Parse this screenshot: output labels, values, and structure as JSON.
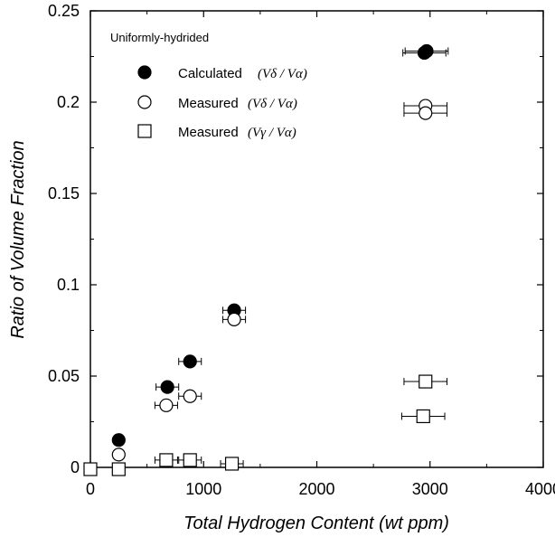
{
  "chart_data": {
    "type": "scatter",
    "title": "",
    "xlabel": "Total Hydrogen Content (wt ppm)",
    "ylabel": "Ratio of Volume Fraction",
    "xlim": [
      0,
      4000
    ],
    "ylim": [
      0,
      0.25
    ],
    "x_ticks": [
      "0",
      "1000",
      "2000",
      "3000",
      "4000"
    ],
    "y_ticks": [
      "0",
      "0.05",
      "0.1",
      "0.15",
      "0.2",
      "0.25"
    ],
    "annotation": "Uniformly-hydrided",
    "legend_position": "top-left",
    "grid": false,
    "series": [
      {
        "name": "Calculated",
        "name_math": "(Vδ / Vα)",
        "marker": "filled-circle",
        "points": [
          {
            "x": 250,
            "y": 0.015
          },
          {
            "x": 680,
            "y": 0.044
          },
          {
            "x": 880,
            "y": 0.058
          },
          {
            "x": 1270,
            "y": 0.086
          },
          {
            "x": 2950,
            "y": 0.227
          },
          {
            "x": 2970,
            "y": 0.228
          }
        ],
        "xerr": [
          0,
          100,
          100,
          100,
          190,
          190
        ]
      },
      {
        "name": "Measured",
        "name_math": "(Vδ / Vα)",
        "marker": "open-circle",
        "points": [
          {
            "x": 250,
            "y": 0.007
          },
          {
            "x": 670,
            "y": 0.034
          },
          {
            "x": 880,
            "y": 0.039
          },
          {
            "x": 1270,
            "y": 0.081
          },
          {
            "x": 2960,
            "y": 0.198
          },
          {
            "x": 2960,
            "y": 0.194
          }
        ],
        "xerr": [
          0,
          100,
          100,
          100,
          190,
          190
        ]
      },
      {
        "name": "Measured",
        "name_math": "(Vγ / Vα)",
        "marker": "open-square",
        "points": [
          {
            "x": 0,
            "y": -0.001
          },
          {
            "x": 250,
            "y": -0.001
          },
          {
            "x": 670,
            "y": 0.004
          },
          {
            "x": 880,
            "y": 0.004
          },
          {
            "x": 1250,
            "y": 0.002
          },
          {
            "x": 2960,
            "y": 0.047
          },
          {
            "x": 2940,
            "y": 0.028
          }
        ],
        "xerr": [
          0,
          0,
          100,
          100,
          100,
          190,
          190
        ]
      }
    ]
  }
}
